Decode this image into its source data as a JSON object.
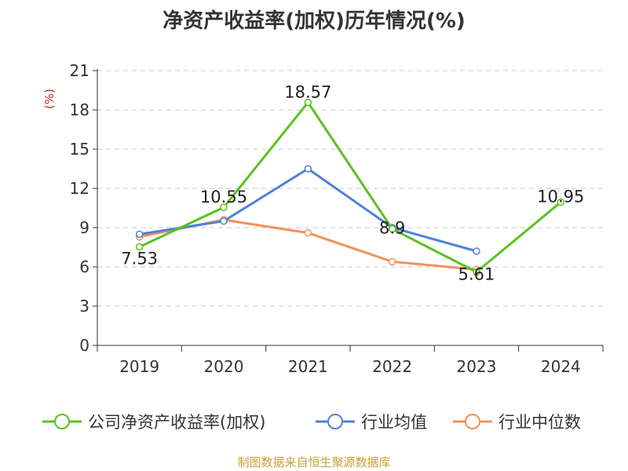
{
  "title": "净资产收益率(加权)历年情况(%)",
  "source": "制图数据来自恒生聚源数据库",
  "chart_data": {
    "type": "line",
    "title": "净资产收益率(加权)历年情况(%)",
    "ylabel": "(%)",
    "xlabel": "",
    "categories": [
      "2019",
      "2020",
      "2021",
      "2022",
      "2023",
      "2024"
    ],
    "ylim": [
      0,
      21
    ],
    "yticks": [
      0,
      3,
      6,
      9,
      12,
      15,
      18,
      21
    ],
    "grid": true,
    "legend_position": "bottom",
    "series": [
      {
        "name": "公司净资产收益率(加权)",
        "color": "#5ac21e",
        "values": [
          7.53,
          10.55,
          18.57,
          8.9,
          5.61,
          10.95
        ],
        "data_labels": [
          "7.53",
          "10.55",
          "18.57",
          "8.9",
          "5.61",
          "10.95"
        ]
      },
      {
        "name": "行业均值",
        "color": "#4f81d9",
        "values": [
          8.5,
          9.5,
          13.5,
          9.0,
          7.2,
          null
        ]
      },
      {
        "name": "行业中位数",
        "color": "#f5905a",
        "values": [
          8.3,
          9.6,
          8.6,
          6.4,
          5.8,
          null
        ]
      }
    ]
  }
}
